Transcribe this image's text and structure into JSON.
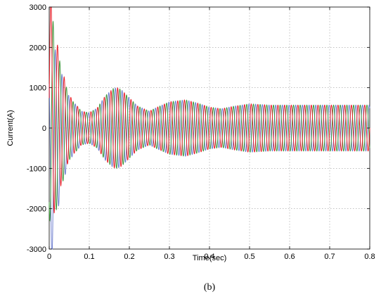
{
  "chart_data": {
    "type": "line",
    "xlabel": "Time(sec)",
    "ylabel": "Current(A)",
    "xlim": [
      0,
      0.8
    ],
    "ylim": [
      -3000,
      3000
    ],
    "xticks": [
      "0",
      "0.1",
      "0.2",
      "0.3",
      "0.4",
      "0.5",
      "0.6",
      "0.7",
      "0.8"
    ],
    "yticks": [
      "-3000",
      "-2000",
      "-1000",
      "0",
      "1000",
      "2000",
      "3000"
    ],
    "grid": true,
    "caption": "(b)",
    "signal_frequency_hz": 60,
    "series": [
      {
        "color": "#e8202a",
        "phase_deg": 0
      },
      {
        "color": "#7080d0",
        "phase_deg": 120
      },
      {
        "color": "#3f9a3f",
        "phase_deg": 240
      }
    ],
    "envelope": {
      "t": [
        0,
        0.005,
        0.01,
        0.02,
        0.03,
        0.04,
        0.05,
        0.06,
        0.07,
        0.08,
        0.1,
        0.12,
        0.14,
        0.16,
        0.17,
        0.18,
        0.2,
        0.22,
        0.25,
        0.27,
        0.3,
        0.34,
        0.37,
        0.4,
        0.43,
        0.46,
        0.5,
        0.55,
        0.6,
        0.7,
        0.8
      ],
      "amplitude": [
        2200,
        2700,
        2600,
        1900,
        1500,
        1100,
        800,
        650,
        550,
        420,
        380,
        500,
        800,
        980,
        1000,
        950,
        750,
        550,
        420,
        520,
        650,
        700,
        620,
        520,
        480,
        540,
        600,
        570,
        570,
        570,
        570
      ]
    }
  }
}
